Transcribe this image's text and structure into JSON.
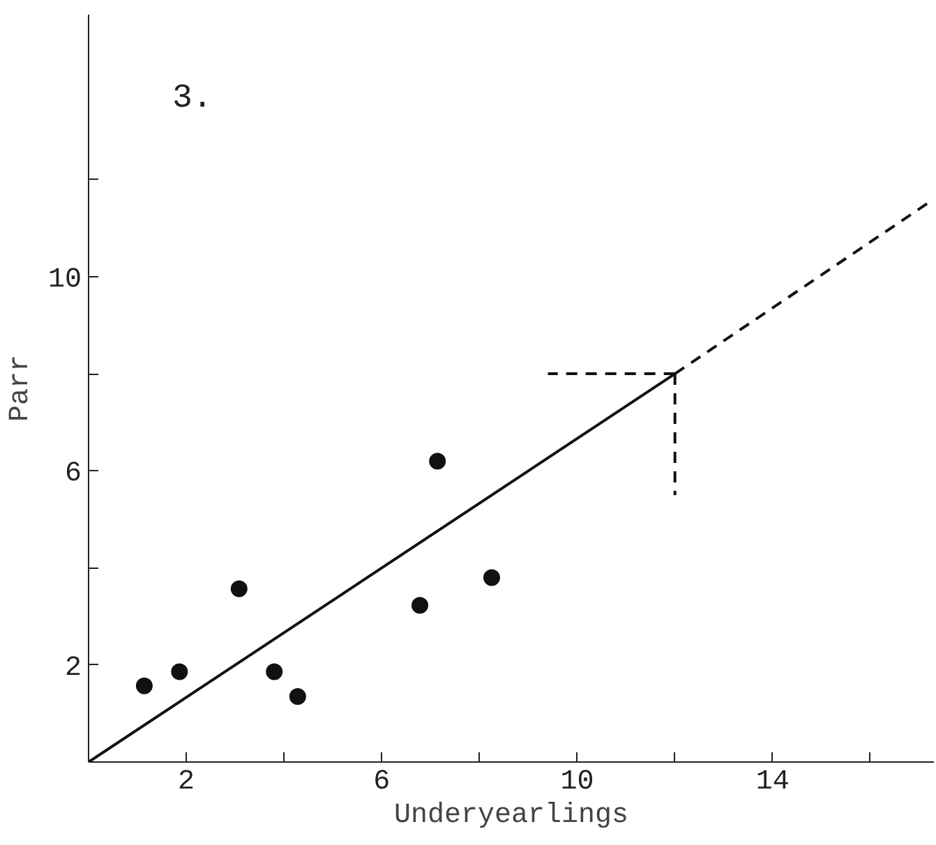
{
  "chart_data": {
    "type": "scatter",
    "xlabel": "Underyearlings",
    "ylabel": "Parr",
    "annotations": [
      "3."
    ],
    "xlim": [
      0,
      17.3
    ],
    "ylim": [
      0,
      15.4
    ],
    "xticks": [
      2,
      {
        "value": 4,
        "label": null
      },
      6,
      {
        "value": 8,
        "label": null
      },
      10,
      {
        "value": 12,
        "label": null
      },
      14,
      {
        "value": 16,
        "label": null
      }
    ],
    "yticks": [
      {
        "value": 0,
        "label": null
      },
      2,
      {
        "value": 4,
        "label": null
      },
      6,
      {
        "value": 8,
        "label": null
      },
      10,
      {
        "value": 12,
        "label": null
      }
    ],
    "grid": false,
    "series": [
      {
        "color": "#111111",
        "marker": "circle",
        "x": [
          1.14,
          1.86,
          3.08,
          3.8,
          4.28,
          6.78,
          7.14,
          8.25
        ],
        "values": [
          1.57,
          1.86,
          3.57,
          1.86,
          1.35,
          3.23,
          6.2,
          3.8
        ]
      },
      {
        "type": "line",
        "color": "#111111",
        "line_style": "solid",
        "x": [
          0,
          12
        ],
        "values": [
          0,
          8
        ]
      },
      {
        "type": "line",
        "color": "#111111",
        "line_style": "dashed",
        "x": [
          12,
          17.3
        ],
        "values": [
          8,
          11.6
        ]
      },
      {
        "type": "line",
        "color": "#111111",
        "line_style": "dashed",
        "x": [
          12,
          9.4
        ],
        "values": [
          8,
          8
        ]
      },
      {
        "type": "line",
        "color": "#111111",
        "line_style": "dashed",
        "x": [
          12,
          12
        ],
        "values": [
          8,
          5.5
        ]
      }
    ]
  }
}
